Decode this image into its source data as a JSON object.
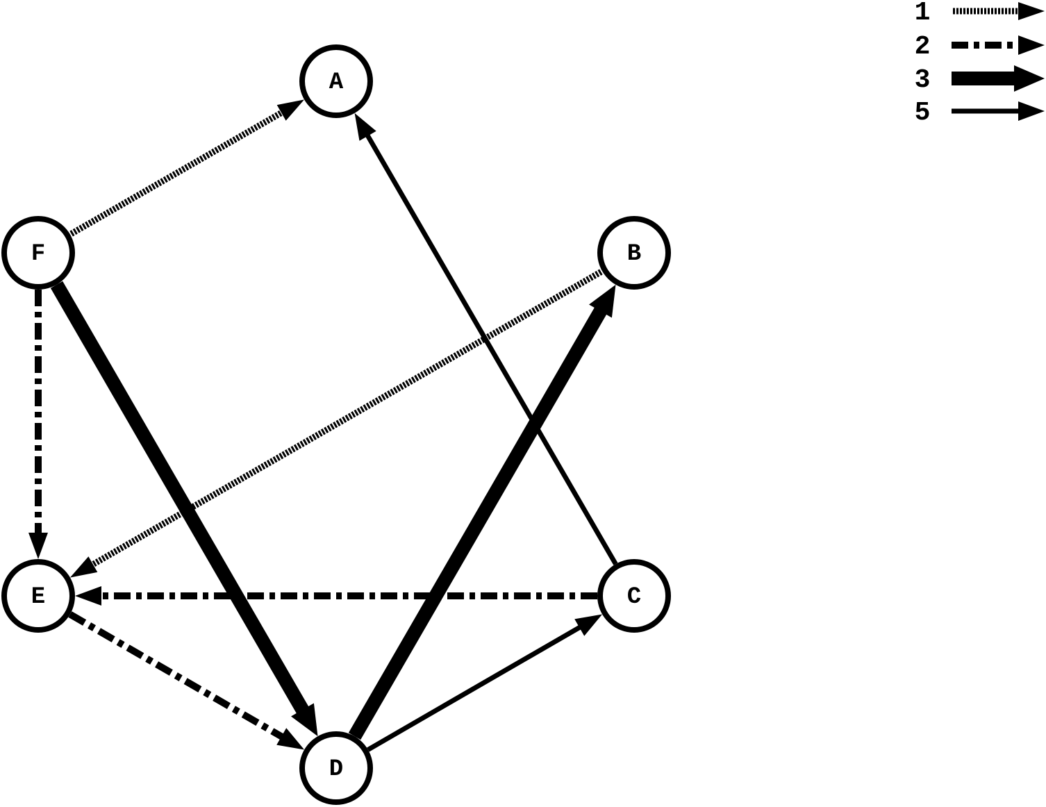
{
  "diagram": {
    "colors": {
      "ink": "#000000",
      "node_fill": "#ffffff",
      "background": "#ffffff"
    },
    "nodes": [
      {
        "id": "A",
        "label": "A"
      },
      {
        "id": "B",
        "label": "B"
      },
      {
        "id": "C",
        "label": "C"
      },
      {
        "id": "D",
        "label": "D"
      },
      {
        "id": "E",
        "label": "E"
      },
      {
        "id": "F",
        "label": "F"
      }
    ],
    "edges": [
      {
        "from": "F",
        "to": "A",
        "weight": 1
      },
      {
        "from": "B",
        "to": "E",
        "weight": 1
      },
      {
        "from": "F",
        "to": "E",
        "weight": 2
      },
      {
        "from": "C",
        "to": "E",
        "weight": 2
      },
      {
        "from": "E",
        "to": "D",
        "weight": 2
      },
      {
        "from": "F",
        "to": "D",
        "weight": 3
      },
      {
        "from": "D",
        "to": "B",
        "weight": 3
      },
      {
        "from": "C",
        "to": "A",
        "weight": 5
      },
      {
        "from": "D",
        "to": "C",
        "weight": 5
      }
    ],
    "legend": [
      {
        "label": "1",
        "style": "dotted"
      },
      {
        "label": "2",
        "style": "dash-dot"
      },
      {
        "label": "3",
        "style": "bold"
      },
      {
        "label": "5",
        "style": "solid"
      }
    ]
  }
}
